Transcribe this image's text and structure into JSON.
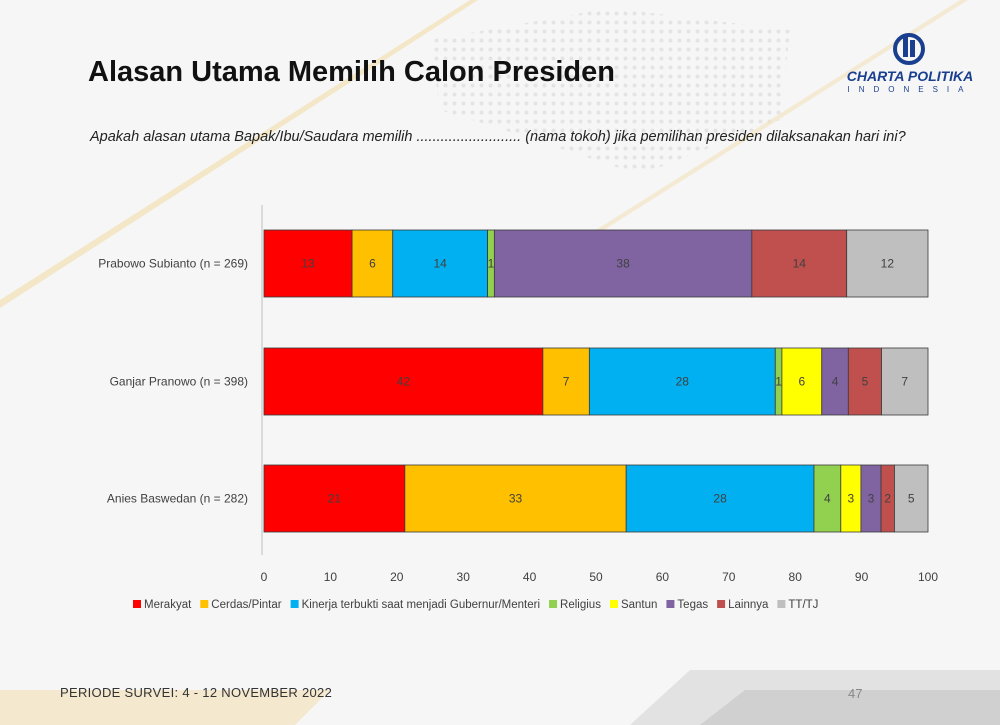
{
  "slide": {
    "title": "Alasan Utama Memilih Calon Presiden",
    "question": "Apakah alasan utama Bapak/Ibu/Saudara memilih .......................... (nama tokoh) jika pemilihan presiden dilaksanakan hari ini?",
    "footer": "PERIODE SURVEI: 4 - 12 NOVEMBER 2022",
    "page_number": "47",
    "logo": {
      "name": "CHARTA POLITIKA",
      "subtitle": "INDONESIA",
      "icon": "charta-politika-logo-icon",
      "color": "#1a3f8f"
    }
  },
  "chart_data": {
    "type": "bar",
    "orientation": "horizontal",
    "stacked": true,
    "categories": [
      "Prabowo Subianto (n = 269)",
      "Ganjar Pranowo (n = 398)",
      "Anies Baswedan (n = 282)"
    ],
    "series": [
      {
        "name": "Merakyat",
        "color": "#ff0000",
        "values": [
          13,
          42,
          21
        ]
      },
      {
        "name": "Cerdas/Pintar",
        "color": "#ffc000",
        "values": [
          6,
          7,
          33
        ]
      },
      {
        "name": "Kinerja terbukti saat menjadi Gubernur/Menteri",
        "color": "#00b0f0",
        "values": [
          14,
          28,
          28
        ]
      },
      {
        "name": "Religius",
        "color": "#92d050",
        "values": [
          1,
          1,
          4
        ]
      },
      {
        "name": "Santun",
        "color": "#ffff00",
        "values": [
          0,
          6,
          3
        ]
      },
      {
        "name": "Tegas",
        "color": "#8064a2",
        "values": [
          38,
          4,
          3
        ]
      },
      {
        "name": "Lainnya",
        "color": "#c0504d",
        "values": [
          14,
          5,
          2
        ]
      },
      {
        "name": "TT/TJ",
        "color": "#bfbfbf",
        "values": [
          12,
          7,
          5
        ]
      }
    ],
    "xlim": [
      0,
      100
    ],
    "xticks": [
      0,
      10,
      20,
      30,
      40,
      50,
      60,
      70,
      80,
      90,
      100
    ],
    "legend_position": "bottom",
    "grid": false
  }
}
